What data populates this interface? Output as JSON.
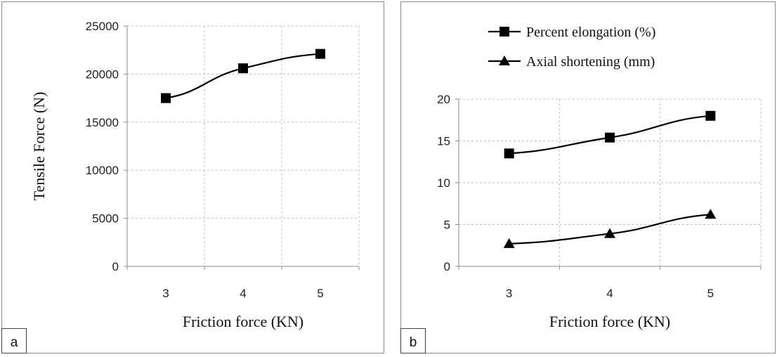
{
  "chart_data": [
    {
      "type": "line",
      "panel_label": "a",
      "xlabel": "Friction force (KN)",
      "ylabel": "Tensile Force (N)",
      "x": [
        3,
        4,
        5
      ],
      "ylim": [
        0,
        25000
      ],
      "yticks": [
        0,
        5000,
        10000,
        15000,
        20000,
        25000
      ],
      "grid": true,
      "series": [
        {
          "marker": "square",
          "values": [
            17500,
            20600,
            22100
          ]
        }
      ]
    },
    {
      "type": "line",
      "panel_label": "b",
      "xlabel": "Friction force (KN)",
      "ylabel": "",
      "x": [
        3,
        4,
        5
      ],
      "ylim": [
        0,
        20
      ],
      "yticks": [
        0,
        5,
        10,
        15,
        20
      ],
      "grid": true,
      "legend": "top",
      "series": [
        {
          "name": "Percent elongation (%)",
          "marker": "square",
          "values": [
            13.5,
            15.4,
            18.0
          ]
        },
        {
          "name": "Axial shortening (mm)",
          "marker": "triangle",
          "values": [
            2.7,
            3.9,
            6.2
          ]
        }
      ]
    }
  ]
}
